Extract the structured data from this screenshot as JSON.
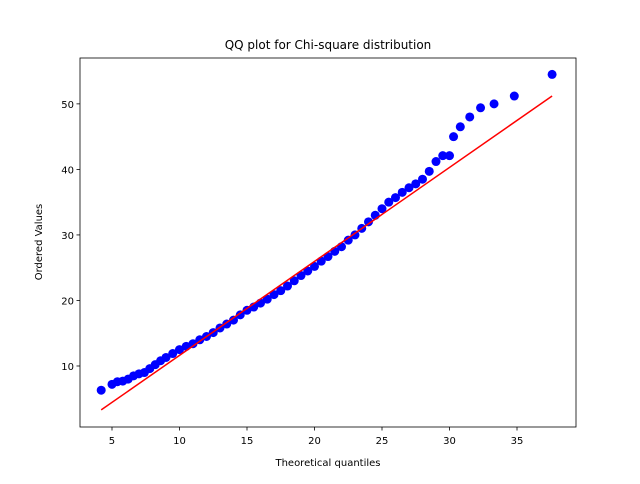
{
  "chart_data": {
    "type": "scatter",
    "title": "QQ plot for Chi-square distribution",
    "x_label": "Theoretical quantiles",
    "y_label": "Ordered Values",
    "xlim": [
      2.63,
      39.37
    ],
    "ylim": [
      0.69,
      57.0
    ],
    "xticks": [
      5,
      10,
      15,
      20,
      25,
      30,
      35
    ],
    "yticks": [
      10,
      20,
      30,
      40,
      50
    ],
    "series": [
      {
        "color": "#0000ff",
        "x": [
          4.2,
          5.0,
          5.4,
          5.8,
          6.2,
          6.6,
          7.0,
          7.4,
          7.8,
          8.2,
          8.6,
          9.0,
          9.5,
          10,
          10.5,
          11,
          11.5,
          12,
          12.5,
          13,
          13.5,
          14,
          14.5,
          15,
          15.5,
          16,
          16.5,
          17,
          17.5,
          18,
          18.5,
          19,
          19.5,
          20,
          20.5,
          21,
          21.5,
          22,
          22.5,
          23,
          23.5,
          24,
          24.5,
          25,
          25.5,
          26,
          26.5,
          27,
          27.5,
          28,
          28.5,
          29,
          29.5,
          30,
          30.3,
          30.8,
          31.5,
          32.3,
          33.3,
          34.8,
          37.6
        ],
        "values": [
          6.3,
          7.2,
          7.6,
          7.7,
          8.0,
          8.5,
          8.8,
          9.0,
          9.6,
          10.2,
          10.8,
          11.3,
          11.9,
          12.5,
          13.0,
          13.4,
          14.0,
          14.5,
          15.1,
          15.8,
          16.4,
          17.0,
          17.8,
          18.5,
          19.0,
          19.6,
          20.2,
          20.9,
          21.5,
          22.2,
          23.0,
          23.8,
          24.5,
          25.2,
          26.0,
          26.7,
          27.5,
          28.2,
          29.2,
          30.0,
          31.0,
          32.0,
          33.0,
          34.0,
          35.0,
          35.7,
          36.5,
          37.2,
          37.8,
          38.5,
          39.7,
          41.2,
          42.1,
          42.1,
          45.0,
          46.5,
          48.0,
          49.4,
          50.0,
          51.2,
          54.5
        ]
      },
      {
        "type": "line",
        "color": "#ff0000",
        "x": [
          4.2,
          37.6
        ],
        "values": [
          3.3,
          51.2
        ]
      }
    ]
  }
}
